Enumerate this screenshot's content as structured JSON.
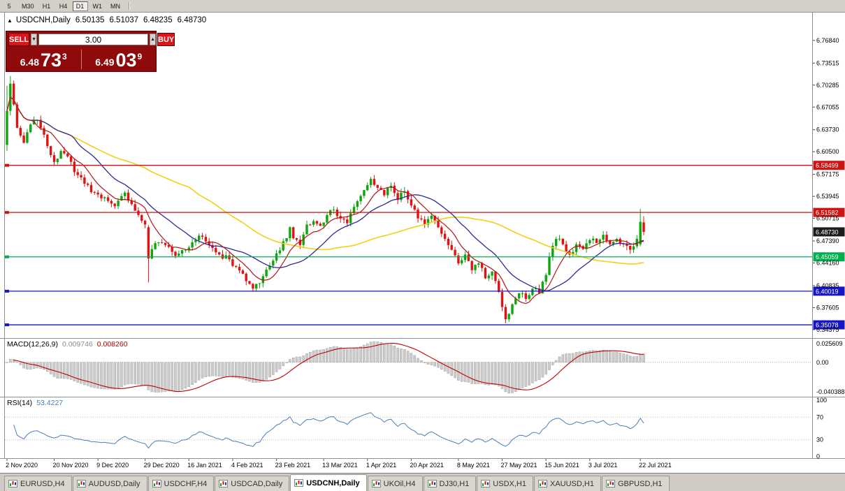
{
  "toolbar": {
    "timeframes": [
      "5",
      "M30",
      "H1",
      "H4",
      "D1",
      "W1",
      "MN"
    ],
    "active": "D1"
  },
  "chart_header": {
    "collapse_icon": "▲",
    "symbol": "USDCNH,Daily",
    "open": "6.50135",
    "high": "6.51037",
    "low": "6.48235",
    "close": "6.48730"
  },
  "trade_panel": {
    "sell": "SELL",
    "buy": "BUY",
    "volume": "3.00",
    "spin_up": "▲",
    "spin_down": "▼",
    "bid": {
      "small": "6.48",
      "big": "73",
      "sup": "3"
    },
    "ask": {
      "small": "6.49",
      "big": "03",
      "sup": "9"
    }
  },
  "macd_header": {
    "label": "MACD(12,26,9)",
    "value1": "0.009746",
    "value2": "0.008260"
  },
  "rsi_header": {
    "label": "RSI(14)",
    "value": "53.4227"
  },
  "tabs": {
    "items": [
      "EURUSD,H4",
      "AUDUSD,Daily",
      "USDCHF,H4",
      "USDCAD,Daily",
      "USDCNH,Daily",
      "UKOil,H4",
      "DJ30,H1",
      "USDX,H1",
      "XAUUSD,H1",
      "GBPUSD,H1"
    ],
    "active_index": 4
  },
  "chart_data": {
    "type": "candlestick",
    "symbol": "USDCNH",
    "timeframe": "Daily",
    "ohlc": {
      "open": 6.50135,
      "high": 6.51037,
      "low": 6.48235,
      "close": 6.4873
    },
    "price_axis_ticks": [
      6.7684,
      6.73515,
      6.70285,
      6.67055,
      6.6373,
      6.605,
      6.57175,
      6.53945,
      6.50715,
      6.4739,
      6.4416,
      6.40835,
      6.37605,
      6.34375
    ],
    "levels": [
      {
        "price": 6.58499,
        "color": "#cf1212",
        "type": "resistance"
      },
      {
        "price": 6.51582,
        "color": "#cf1212",
        "type": "resistance"
      },
      {
        "price": 6.4873,
        "color": "#1c1c1c",
        "type": "current"
      },
      {
        "price": 6.45059,
        "color": "#00b050",
        "type": "support"
      },
      {
        "price": 6.40019,
        "color": "#1616c8",
        "type": "support"
      },
      {
        "price": 6.35078,
        "color": "#1616c8",
        "type": "support"
      }
    ],
    "x_axis_labels": [
      "2 Nov 2020",
      "20 Nov 2020",
      "9 Dec 2020",
      "29 Dec 2020",
      "16 Jan 2021",
      "4 Feb 2021",
      "23 Feb 2021",
      "13 Mar 2021",
      "1 Apr 2021",
      "20 Apr 2021",
      "8 May 2021",
      "27 May 2021",
      "15 Jun 2021",
      "3 Jul 2021",
      "22 Jul 2021"
    ],
    "x_axis_indices": [
      0,
      14,
      27,
      41,
      54,
      67,
      80,
      94,
      107,
      120,
      134,
      147,
      160,
      173,
      188
    ],
    "candle_count": 190,
    "colors": {
      "up": "#0ea50e",
      "down": "#e01212",
      "background": "#ffffff",
      "axis_text": "#000000"
    },
    "moving_averages": [
      {
        "period": 55,
        "color": "#f0d018",
        "width": 1.6
      },
      {
        "period": 20,
        "color": "#2b2b96",
        "width": 1.3
      },
      {
        "period": 8,
        "color": "#b41616",
        "width": 1.2
      }
    ],
    "close_anchors": [
      [
        0,
        6.665
      ],
      [
        1,
        6.705
      ],
      [
        3,
        6.64
      ],
      [
        5,
        6.618
      ],
      [
        7,
        6.645
      ],
      [
        9,
        6.652
      ],
      [
        11,
        6.63
      ],
      [
        13,
        6.6
      ],
      [
        14,
        6.59
      ],
      [
        16,
        6.606
      ],
      [
        18,
        6.598
      ],
      [
        20,
        6.575
      ],
      [
        23,
        6.558
      ],
      [
        26,
        6.545
      ],
      [
        29,
        6.538
      ],
      [
        32,
        6.525
      ],
      [
        35,
        6.545
      ],
      [
        37,
        6.528
      ],
      [
        39,
        6.512
      ],
      [
        41,
        6.498
      ],
      [
        42,
        6.448
      ],
      [
        43,
        6.462
      ],
      [
        45,
        6.472
      ],
      [
        47,
        6.468
      ],
      [
        50,
        6.452
      ],
      [
        53,
        6.461
      ],
      [
        56,
        6.475
      ],
      [
        58,
        6.48
      ],
      [
        60,
        6.468
      ],
      [
        63,
        6.454
      ],
      [
        66,
        6.447
      ],
      [
        68,
        6.436
      ],
      [
        71,
        6.415
      ],
      [
        73,
        6.404
      ],
      [
        75,
        6.412
      ],
      [
        77,
        6.432
      ],
      [
        79,
        6.445
      ],
      [
        81,
        6.46
      ],
      [
        83,
        6.478
      ],
      [
        84,
        6.494
      ],
      [
        85,
        6.478
      ],
      [
        87,
        6.468
      ],
      [
        89,
        6.498
      ],
      [
        91,
        6.503
      ],
      [
        93,
        6.496
      ],
      [
        95,
        6.512
      ],
      [
        97,
        6.52
      ],
      [
        99,
        6.507
      ],
      [
        101,
        6.5
      ],
      [
        103,
        6.524
      ],
      [
        105,
        6.54
      ],
      [
        107,
        6.556
      ],
      [
        108,
        6.565
      ],
      [
        110,
        6.552
      ],
      [
        112,
        6.541
      ],
      [
        114,
        6.555
      ],
      [
        116,
        6.534
      ],
      [
        118,
        6.547
      ],
      [
        120,
        6.526
      ],
      [
        122,
        6.507
      ],
      [
        124,
        6.498
      ],
      [
        126,
        6.511
      ],
      [
        128,
        6.494
      ],
      [
        130,
        6.477
      ],
      [
        132,
        6.461
      ],
      [
        134,
        6.441
      ],
      [
        136,
        6.454
      ],
      [
        138,
        6.431
      ],
      [
        140,
        6.441
      ],
      [
        142,
        6.419
      ],
      [
        144,
        6.429
      ],
      [
        146,
        6.399
      ],
      [
        147,
        6.377
      ],
      [
        148,
        6.359
      ],
      [
        150,
        6.381
      ],
      [
        152,
        6.397
      ],
      [
        154,
        6.389
      ],
      [
        156,
        6.404
      ],
      [
        158,
        6.397
      ],
      [
        160,
        6.424
      ],
      [
        161,
        6.451
      ],
      [
        163,
        6.477
      ],
      [
        165,
        6.469
      ],
      [
        167,
        6.454
      ],
      [
        169,
        6.469
      ],
      [
        171,
        6.462
      ],
      [
        173,
        6.475
      ],
      [
        175,
        6.471
      ],
      [
        177,
        6.483
      ],
      [
        179,
        6.469
      ],
      [
        181,
        6.477
      ],
      [
        183,
        6.469
      ],
      [
        185,
        6.461
      ],
      [
        187,
        6.477
      ],
      [
        188,
        6.502
      ],
      [
        189,
        6.4873
      ]
    ],
    "key_candles": {
      "0": {
        "o": 6.615,
        "h": 6.702,
        "l": 6.606,
        "c": 6.665
      },
      "1": {
        "o": 6.665,
        "h": 6.716,
        "l": 6.658,
        "c": 6.705
      },
      "42": {
        "o": 6.494,
        "h": 6.497,
        "l": 6.413,
        "c": 6.448
      },
      "148": {
        "o": 6.377,
        "h": 6.381,
        "l": 6.353,
        "c": 6.359
      },
      "188": {
        "o": 6.469,
        "h": 6.521,
        "l": 6.466,
        "c": 6.502
      },
      "189": {
        "o": 6.50135,
        "h": 6.51037,
        "l": 6.48235,
        "c": 6.4873
      }
    },
    "macd": {
      "params": [
        12,
        26,
        9
      ],
      "current_values": [
        0.009746,
        0.00826
      ],
      "axis_labels": [
        "0.025609",
        "0.00",
        "-0.040388"
      ],
      "hist_color": "#cbcbcb",
      "hist_stroke": "#9b9b9b",
      "signal_color": "#c00000"
    },
    "rsi": {
      "period": 14,
      "last": 53.4227,
      "axis_labels": [
        "100",
        "70",
        "30",
        "0"
      ],
      "guide_levels": [
        70,
        30
      ],
      "line_color": "#4a7ebb"
    }
  }
}
